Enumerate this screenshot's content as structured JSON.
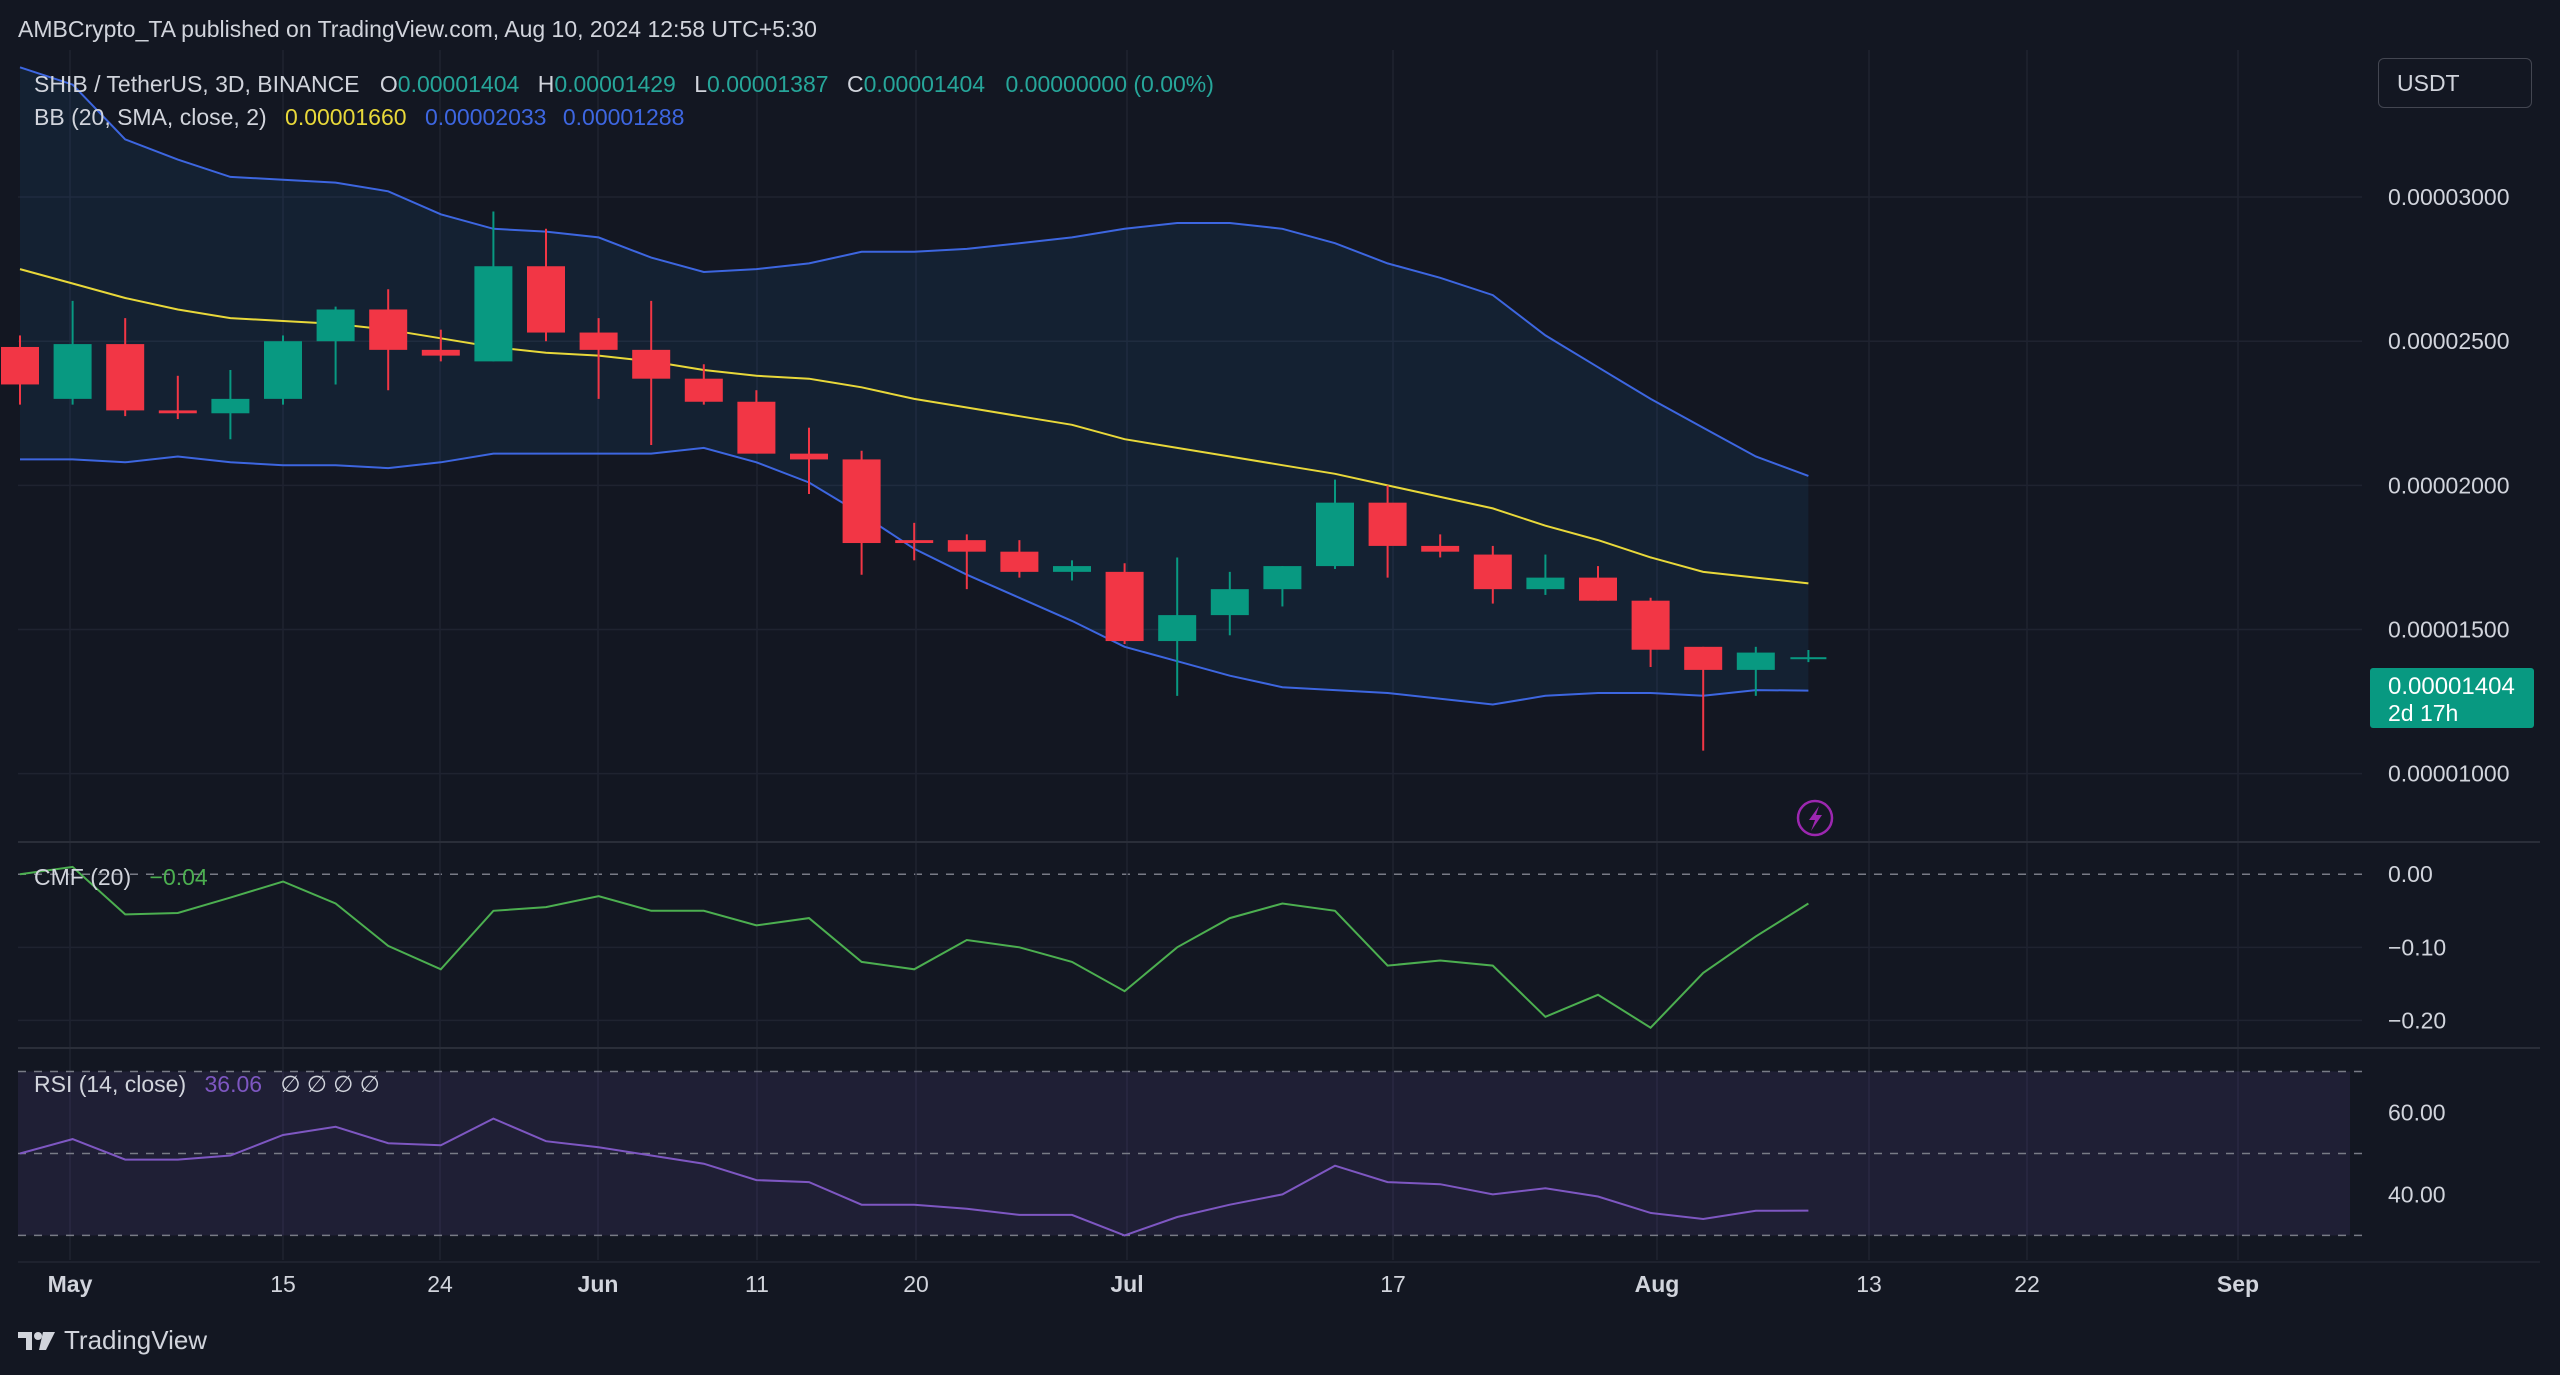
{
  "publisher": "AMBCrypto_TA published on TradingView.com, Aug 10, 2024 12:58 UTC+5:30",
  "currency_button": "USDT",
  "brand": "TradingView",
  "colors": {
    "bg": "#131722",
    "up": "#26a69a",
    "up_fill": "#089981",
    "down": "#f23645",
    "bb_basis": "#e8d83a",
    "bb_band": "#3d66e0",
    "cmf": "#4caf50",
    "rsi": "#7e57c2"
  },
  "header": {
    "symbol": "SHIB / TetherUS, 3D, BINANCE",
    "o_label": "O",
    "o_value": "0.00001404",
    "h_label": "H",
    "h_value": "0.00001429",
    "l_label": "L",
    "l_value": "0.00001387",
    "c_label": "C",
    "c_value": "0.00001404",
    "change": "0.00000000 (0.00%)",
    "bb_label": "BB (20, SMA, close, 2)",
    "bb_basis": "0.00001660",
    "bb_upper": "0.00002033",
    "bb_lower": "0.00001288",
    "cmf_label": "CMF (20)",
    "cmf_value": "−0.04",
    "rsi_label": "RSI (14, close)",
    "rsi_value": "36.06",
    "rsi_extra": "∅ ∅ ∅ ∅"
  },
  "price_tag": {
    "value": "0.00001404",
    "countdown": "2d 17h"
  },
  "chart_data": [
    {
      "type": "candlestick",
      "title": "SHIB / TetherUS, 3D, BINANCE",
      "y_ticks": [
        "0.00001000",
        "0.00001500",
        "0.00002000",
        "0.00002500",
        "0.00003000"
      ],
      "ylim": [
        7.7e-06,
        3.51e-05
      ],
      "x_ticks": [
        "May",
        "15",
        "24",
        "Jun",
        "11",
        "20",
        "Jul",
        "17",
        "Aug",
        "13",
        "22",
        "Sep"
      ],
      "candles": [
        {
          "o": 2.48e-05,
          "h": 2.52e-05,
          "l": 2.28e-05,
          "c": 2.35e-05
        },
        {
          "o": 2.3e-05,
          "h": 2.64e-05,
          "l": 2.28e-05,
          "c": 2.49e-05
        },
        {
          "o": 2.49e-05,
          "h": 2.58e-05,
          "l": 2.24e-05,
          "c": 2.26e-05
        },
        {
          "o": 2.26e-05,
          "h": 2.38e-05,
          "l": 2.23e-05,
          "c": 2.25e-05
        },
        {
          "o": 2.25e-05,
          "h": 2.4e-05,
          "l": 2.16e-05,
          "c": 2.3e-05
        },
        {
          "o": 2.3e-05,
          "h": 2.52e-05,
          "l": 2.28e-05,
          "c": 2.5e-05
        },
        {
          "o": 2.5e-05,
          "h": 2.62e-05,
          "l": 2.35e-05,
          "c": 2.61e-05
        },
        {
          "o": 2.61e-05,
          "h": 2.68e-05,
          "l": 2.33e-05,
          "c": 2.47e-05
        },
        {
          "o": 2.47e-05,
          "h": 2.54e-05,
          "l": 2.43e-05,
          "c": 2.45e-05
        },
        {
          "o": 2.43e-05,
          "h": 2.95e-05,
          "l": 2.43e-05,
          "c": 2.76e-05
        },
        {
          "o": 2.76e-05,
          "h": 2.89e-05,
          "l": 2.5e-05,
          "c": 2.53e-05
        },
        {
          "o": 2.53e-05,
          "h": 2.58e-05,
          "l": 2.3e-05,
          "c": 2.47e-05
        },
        {
          "o": 2.47e-05,
          "h": 2.64e-05,
          "l": 2.14e-05,
          "c": 2.37e-05
        },
        {
          "o": 2.37e-05,
          "h": 2.42e-05,
          "l": 2.28e-05,
          "c": 2.29e-05
        },
        {
          "o": 2.29e-05,
          "h": 2.33e-05,
          "l": 2.11e-05,
          "c": 2.11e-05
        },
        {
          "o": 2.11e-05,
          "h": 2.2e-05,
          "l": 1.97e-05,
          "c": 2.09e-05
        },
        {
          "o": 2.09e-05,
          "h": 2.12e-05,
          "l": 1.69e-05,
          "c": 1.8e-05
        },
        {
          "o": 1.81e-05,
          "h": 1.87e-05,
          "l": 1.74e-05,
          "c": 1.8e-05
        },
        {
          "o": 1.81e-05,
          "h": 1.83e-05,
          "l": 1.64e-05,
          "c": 1.77e-05
        },
        {
          "o": 1.77e-05,
          "h": 1.81e-05,
          "l": 1.68e-05,
          "c": 1.7e-05
        },
        {
          "o": 1.7e-05,
          "h": 1.74e-05,
          "l": 1.67e-05,
          "c": 1.72e-05
        },
        {
          "o": 1.7e-05,
          "h": 1.73e-05,
          "l": 1.45e-05,
          "c": 1.46e-05
        },
        {
          "o": 1.46e-05,
          "h": 1.75e-05,
          "l": 1.27e-05,
          "c": 1.55e-05
        },
        {
          "o": 1.55e-05,
          "h": 1.7e-05,
          "l": 1.48e-05,
          "c": 1.64e-05
        },
        {
          "o": 1.64e-05,
          "h": 1.72e-05,
          "l": 1.58e-05,
          "c": 1.72e-05
        },
        {
          "o": 1.72e-05,
          "h": 2.02e-05,
          "l": 1.71e-05,
          "c": 1.94e-05
        },
        {
          "o": 1.94e-05,
          "h": 2e-05,
          "l": 1.68e-05,
          "c": 1.79e-05
        },
        {
          "o": 1.79e-05,
          "h": 1.83e-05,
          "l": 1.75e-05,
          "c": 1.77e-05
        },
        {
          "o": 1.76e-05,
          "h": 1.79e-05,
          "l": 1.59e-05,
          "c": 1.64e-05
        },
        {
          "o": 1.64e-05,
          "h": 1.76e-05,
          "l": 1.62e-05,
          "c": 1.68e-05
        },
        {
          "o": 1.68e-05,
          "h": 1.72e-05,
          "l": 1.6e-05,
          "c": 1.6e-05
        },
        {
          "o": 1.6e-05,
          "h": 1.61e-05,
          "l": 1.37e-05,
          "c": 1.43e-05
        },
        {
          "o": 1.44e-05,
          "h": 1.44e-05,
          "l": 1.08e-05,
          "c": 1.36e-05
        },
        {
          "o": 1.36e-05,
          "h": 1.44e-05,
          "l": 1.27e-05,
          "c": 1.42e-05
        },
        {
          "o": 1.404e-05,
          "h": 1.429e-05,
          "l": 1.387e-05,
          "c": 1.404e-05
        }
      ],
      "bb_basis": [
        2.75e-05,
        2.7e-05,
        2.65e-05,
        2.61e-05,
        2.58e-05,
        2.57e-05,
        2.56e-05,
        2.54e-05,
        2.51e-05,
        2.48e-05,
        2.46e-05,
        2.45e-05,
        2.43e-05,
        2.4e-05,
        2.38e-05,
        2.37e-05,
        2.34e-05,
        2.3e-05,
        2.27e-05,
        2.24e-05,
        2.21e-05,
        2.16e-05,
        2.13e-05,
        2.1e-05,
        2.07e-05,
        2.04e-05,
        2e-05,
        1.96e-05,
        1.92e-05,
        1.86e-05,
        1.81e-05,
        1.75e-05,
        1.7e-05,
        1.68e-05,
        1.66e-05
      ],
      "bb_upper": [
        3.45e-05,
        3.39e-05,
        3.2e-05,
        3.13e-05,
        3.07e-05,
        3.06e-05,
        3.05e-05,
        3.02e-05,
        2.94e-05,
        2.89e-05,
        2.88e-05,
        2.86e-05,
        2.79e-05,
        2.74e-05,
        2.75e-05,
        2.77e-05,
        2.81e-05,
        2.81e-05,
        2.82e-05,
        2.84e-05,
        2.86e-05,
        2.89e-05,
        2.91e-05,
        2.91e-05,
        2.89e-05,
        2.84e-05,
        2.77e-05,
        2.72e-05,
        2.66e-05,
        2.52e-05,
        2.41e-05,
        2.3e-05,
        2.2e-05,
        2.1e-05,
        2.033e-05
      ],
      "bb_lower": [
        2.09e-05,
        2.09e-05,
        2.08e-05,
        2.1e-05,
        2.08e-05,
        2.07e-05,
        2.07e-05,
        2.06e-05,
        2.08e-05,
        2.11e-05,
        2.11e-05,
        2.11e-05,
        2.11e-05,
        2.13e-05,
        2.08e-05,
        2.01e-05,
        1.9e-05,
        1.78e-05,
        1.69e-05,
        1.61e-05,
        1.53e-05,
        1.44e-05,
        1.39e-05,
        1.34e-05,
        1.3e-05,
        1.29e-05,
        1.28e-05,
        1.26e-05,
        1.24e-05,
        1.27e-05,
        1.28e-05,
        1.28e-05,
        1.27e-05,
        1.29e-05,
        1.288e-05
      ]
    },
    {
      "type": "line",
      "title": "CMF (20)",
      "y_ticks": [
        "0.00",
        "−0.10",
        "−0.20"
      ],
      "ylim": [
        -0.235,
        0.04
      ],
      "values": [
        0.0,
        0.01,
        -0.055,
        -0.053,
        -0.032,
        -0.01,
        -0.04,
        -0.098,
        -0.13,
        -0.05,
        -0.045,
        -0.03,
        -0.05,
        -0.05,
        -0.07,
        -0.06,
        -0.12,
        -0.13,
        -0.09,
        -0.1,
        -0.12,
        -0.16,
        -0.1,
        -0.06,
        -0.04,
        -0.05,
        -0.125,
        -0.118,
        -0.125,
        -0.195,
        -0.165,
        -0.21,
        -0.135,
        -0.085,
        -0.04
      ]
    },
    {
      "type": "line",
      "title": "RSI (14, close)",
      "y_ticks": [
        "60.00",
        "40.00"
      ],
      "ylim": [
        24,
        75
      ],
      "band": [
        30,
        70
      ],
      "values": [
        50.0,
        53.5,
        48.5,
        48.5,
        49.5,
        54.5,
        56.5,
        52.5,
        52.0,
        58.5,
        53.0,
        51.5,
        49.5,
        47.5,
        43.5,
        43.0,
        37.5,
        37.5,
        36.5,
        35.0,
        35.0,
        30.0,
        34.5,
        37.5,
        40.0,
        47.0,
        43.0,
        42.5,
        40.0,
        41.5,
        39.5,
        35.5,
        34.0,
        36.0,
        36.06
      ]
    }
  ]
}
